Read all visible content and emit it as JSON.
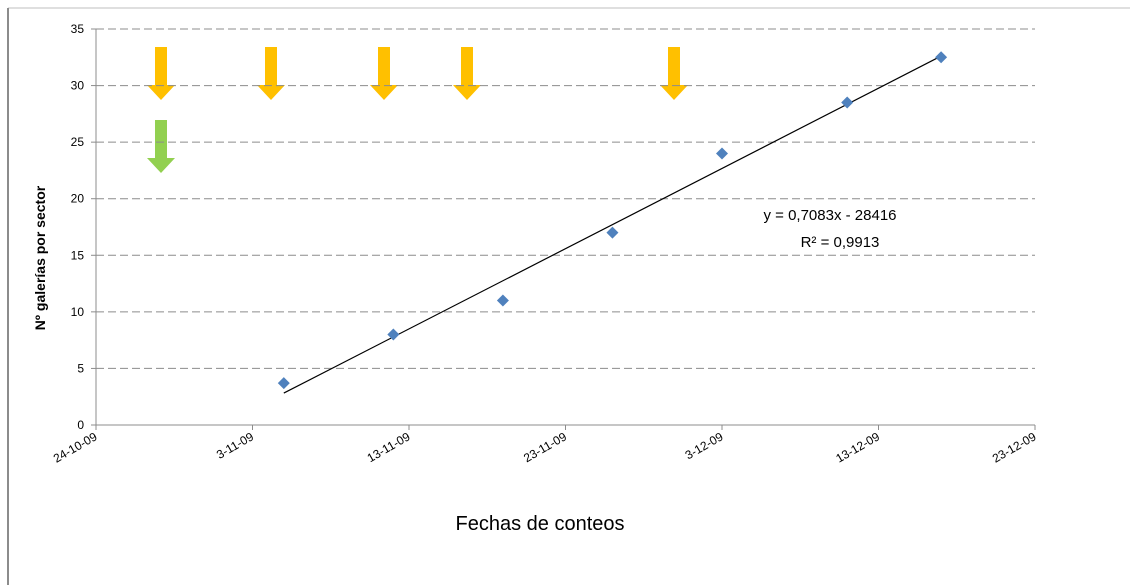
{
  "chart_data": {
    "type": "scatter",
    "y_axis_label": "Nº galerías por sector",
    "x_axis_label": "Fechas de conteos",
    "x": [
      "2009-11-05",
      "2009-11-12",
      "2009-11-19",
      "2009-11-26",
      "2009-12-03",
      "2009-12-11",
      "2009-12-17"
    ],
    "values": [
      3.7,
      8,
      11,
      17,
      24,
      28.5,
      32.5
    ],
    "color": "#4f81bd",
    "xlim": [
      "2009-10-24",
      "2009-12-23"
    ],
    "xticks": [
      {
        "value": "2009-10-24",
        "label": "24-10-09"
      },
      {
        "value": "2009-11-03",
        "label": "3-11-09"
      },
      {
        "value": "2009-11-13",
        "label": "13-11-09"
      },
      {
        "value": "2009-11-23",
        "label": "23-11-09"
      },
      {
        "value": "2009-12-03",
        "label": "3-12-09"
      },
      {
        "value": "2009-12-13",
        "label": "13-12-09"
      },
      {
        "value": "2009-12-23",
        "label": "23-12-09"
      }
    ],
    "ylim": [
      0,
      35
    ],
    "yticks": [
      0,
      5,
      10,
      15,
      20,
      25,
      30,
      35
    ],
    "grid": true,
    "trendline": {
      "equation": "y = 0,7083x - 28416",
      "r_squared": "R² = 0,9913",
      "color": "#000000"
    }
  }
}
